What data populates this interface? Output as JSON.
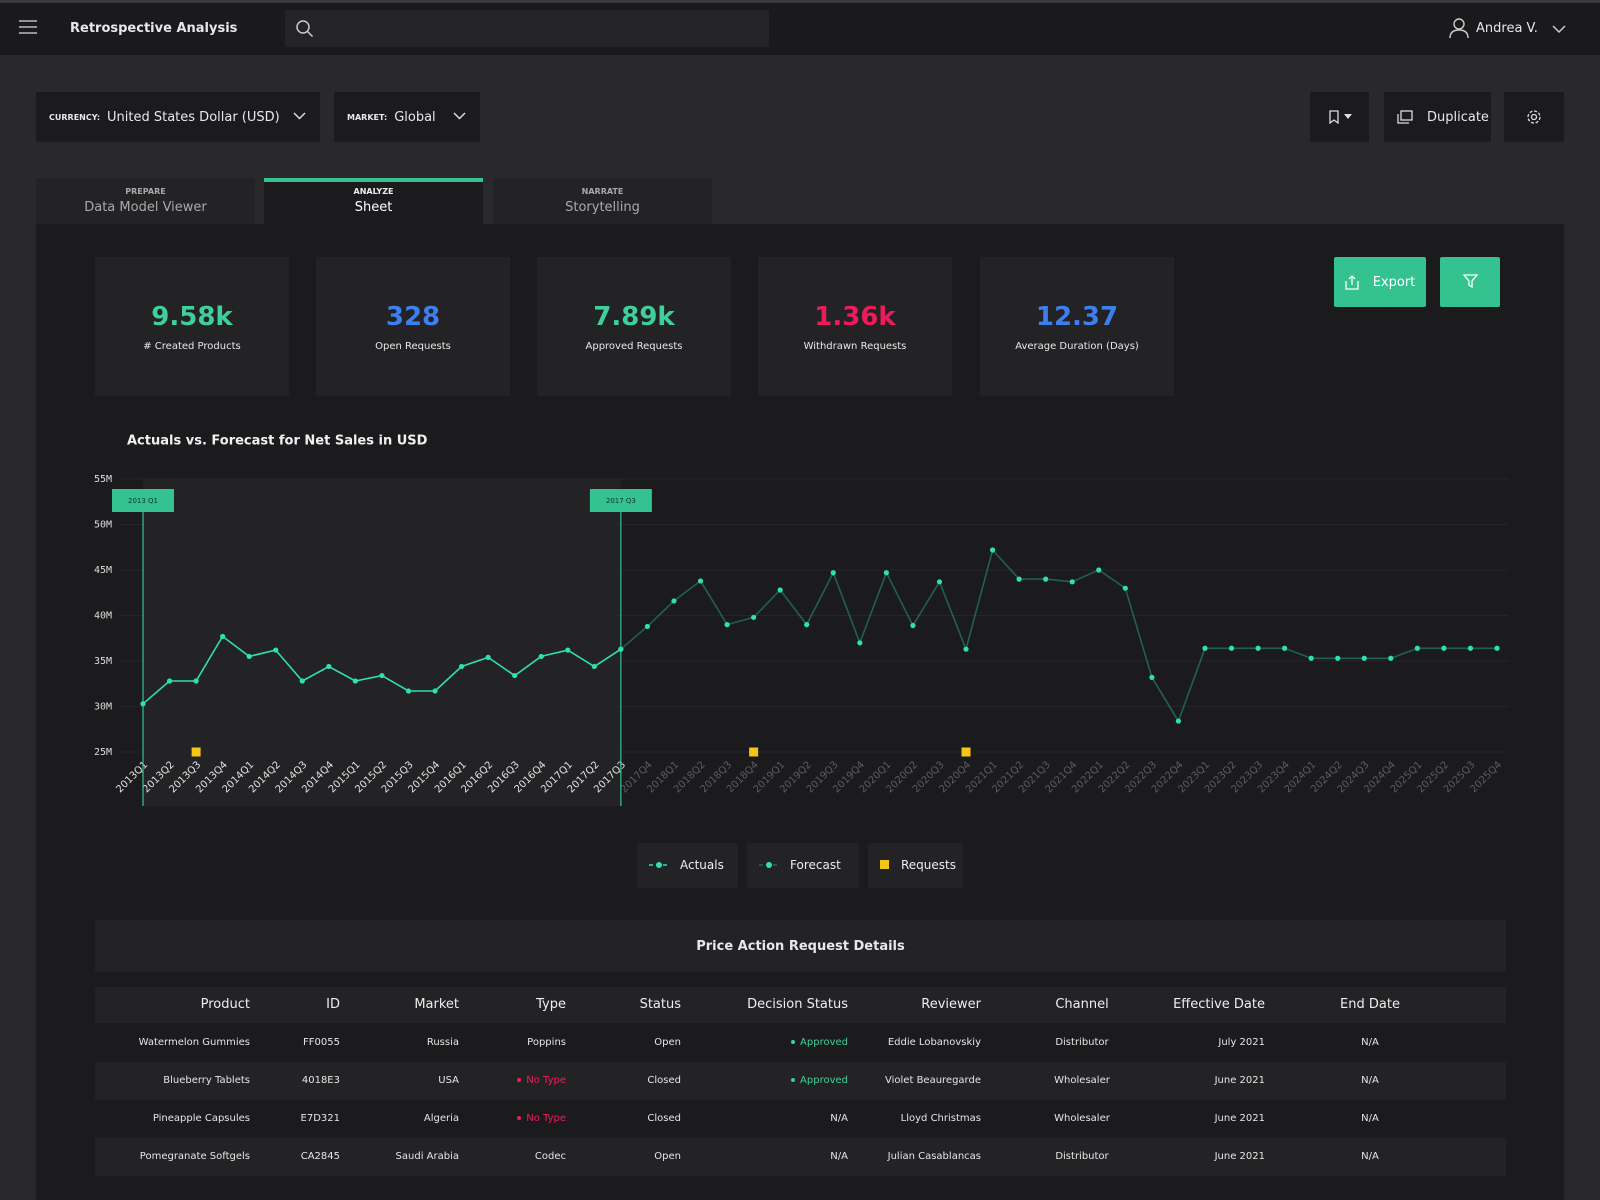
{
  "header": {
    "title": "Retrospective Analysis",
    "user": "Andrea V."
  },
  "controls": {
    "currency": {
      "label": "CURRENCY:",
      "value": "United States Dollar (USD)"
    },
    "market": {
      "label": "MARKET:",
      "value": "Global"
    },
    "duplicate": "Duplicate"
  },
  "tabs": [
    {
      "kicker": "PREPARE",
      "label": "Data Model Viewer",
      "active": false
    },
    {
      "kicker": "ANALYZE",
      "label": "Sheet",
      "active": true
    },
    {
      "kicker": "NARRATE",
      "label": "Storytelling",
      "active": false
    }
  ],
  "kpis": [
    {
      "value": "9.58k",
      "label": "# Created Products",
      "color": "#3ecf9a"
    },
    {
      "value": "328",
      "label": "Open Requests",
      "color": "#3d7ef0"
    },
    {
      "value": "7.89k",
      "label": "Approved Requests",
      "color": "#3ecf9a"
    },
    {
      "value": "1.36k",
      "label": "Withdrawn Requests",
      "color": "#ee1b5c"
    },
    {
      "value": "12.37",
      "label": "Average Duration (Days)",
      "color": "#3d7ef0"
    }
  ],
  "export": "Export",
  "chart_data": {
    "type": "line",
    "title": "Actuals vs. Forecast for Net Sales in USD",
    "categories": [
      "2013Q1",
      "2013Q2",
      "2013Q3",
      "2013Q4",
      "2014Q1",
      "2014Q2",
      "2014Q3",
      "2014Q4",
      "2015Q1",
      "2015Q2",
      "2015Q3",
      "2015Q4",
      "2016Q1",
      "2016Q2",
      "2016Q3",
      "2016Q4",
      "2017Q1",
      "2017Q2",
      "2017Q3",
      "2017Q4",
      "2018Q1",
      "2018Q2",
      "2018Q3",
      "2018Q4",
      "2019Q1",
      "2019Q2",
      "2019Q3",
      "2019Q4",
      "2020Q1",
      "2020Q2",
      "2020Q3",
      "2020Q4",
      "2021Q1",
      "2021Q2",
      "2021Q3",
      "2021Q4",
      "2022Q1",
      "2022Q2",
      "2022Q3",
      "2022Q4",
      "2023Q1",
      "2023Q2",
      "2023Q3",
      "2023Q4",
      "2024Q1",
      "2024Q2",
      "2024Q3",
      "2024Q4",
      "2025Q1",
      "2025Q2",
      "2025Q3",
      "2025Q4"
    ],
    "series": [
      {
        "name": "Actuals",
        "color": "#2ee0b2",
        "values": [
          30.3,
          32.8,
          32.8,
          37.7,
          35.5,
          36.2,
          32.8,
          34.4,
          32.8,
          33.4,
          31.7,
          31.7,
          34.4,
          35.4,
          33.4,
          35.5,
          36.2,
          34.4,
          36.3,
          null,
          null,
          null,
          null,
          null,
          null,
          null,
          null,
          null,
          null,
          null,
          null,
          null,
          null,
          null,
          null,
          null,
          null,
          null,
          null,
          null,
          null,
          null,
          null,
          null,
          null,
          null,
          null,
          null,
          null,
          null,
          null,
          null
        ]
      },
      {
        "name": "Forecast",
        "color": "#2ee0b2",
        "line_opacity": 0.35,
        "values": [
          null,
          null,
          null,
          null,
          null,
          null,
          null,
          null,
          null,
          null,
          null,
          null,
          null,
          null,
          null,
          null,
          null,
          null,
          36.3,
          38.8,
          41.6,
          43.8,
          39.0,
          39.8,
          42.8,
          39.0,
          44.7,
          37.0,
          44.7,
          38.9,
          43.7,
          36.3,
          47.2,
          44.0,
          44.0,
          43.7,
          45.0,
          43.0,
          33.2,
          28.4,
          36.4,
          36.4,
          36.4,
          36.4,
          35.3,
          35.3,
          35.3,
          35.3,
          36.4,
          36.4,
          36.4,
          36.4
        ]
      },
      {
        "name": "Requests",
        "color": "#f5c518",
        "marker": "square",
        "values": [
          null,
          null,
          25,
          null,
          null,
          null,
          null,
          null,
          null,
          null,
          null,
          null,
          null,
          null,
          null,
          null,
          null,
          null,
          null,
          null,
          null,
          null,
          null,
          25,
          null,
          null,
          null,
          null,
          null,
          null,
          null,
          25,
          null,
          null,
          null,
          null,
          null,
          null,
          null,
          null,
          null,
          null,
          null,
          null,
          null,
          null,
          null,
          null,
          null,
          null,
          null,
          null
        ]
      }
    ],
    "ylim": [
      25,
      55
    ],
    "yticks": [
      {
        "value": 25,
        "label": "25M"
      },
      {
        "value": 30,
        "label": "30M"
      },
      {
        "value": 35,
        "label": "35M"
      },
      {
        "value": 40,
        "label": "40M"
      },
      {
        "value": 45,
        "label": "45M"
      },
      {
        "value": 50,
        "label": "50M"
      },
      {
        "value": 55,
        "label": "55M"
      }
    ],
    "grid": true,
    "annotations": [
      {
        "text": "2013 Q1",
        "x": "2013Q1"
      },
      {
        "text": "2017 Q3",
        "x": "2017Q3"
      }
    ]
  },
  "table": {
    "title": "Price Action Request Details",
    "columns": [
      "Product",
      "ID",
      "Market",
      "Type",
      "Status",
      "Decision Status",
      "Reviewer",
      "Channel",
      "Effective Date",
      "End Date"
    ],
    "rows": [
      [
        "Watermelon Gummies",
        "FF0055",
        "Russia",
        "Poppins",
        "Open",
        "Approved",
        "Eddie Lobanovskiy",
        "Distributor",
        "July 2021",
        "N/A"
      ],
      [
        "Blueberry Tablets",
        "4018E3",
        "USA",
        "No Type",
        "Closed",
        "Approved",
        "Violet Beauregarde",
        "Wholesaler",
        "June 2021",
        "N/A"
      ],
      [
        "Pineapple Capsules",
        "E7D321",
        "Algeria",
        "No Type",
        "Closed",
        "N/A",
        "Lloyd Christmas",
        "Wholesaler",
        "June 2021",
        "N/A"
      ],
      [
        "Pomegranate Softgels",
        "CA2845",
        "Saudi Arabia",
        "Codec",
        "Open",
        "N/A",
        "Julian Casablancas",
        "Distributor",
        "June 2021",
        "N/A"
      ]
    ],
    "badge_colors": {
      "Approved": "#3ecf9a",
      "No Type": "#ee1b5c"
    }
  }
}
